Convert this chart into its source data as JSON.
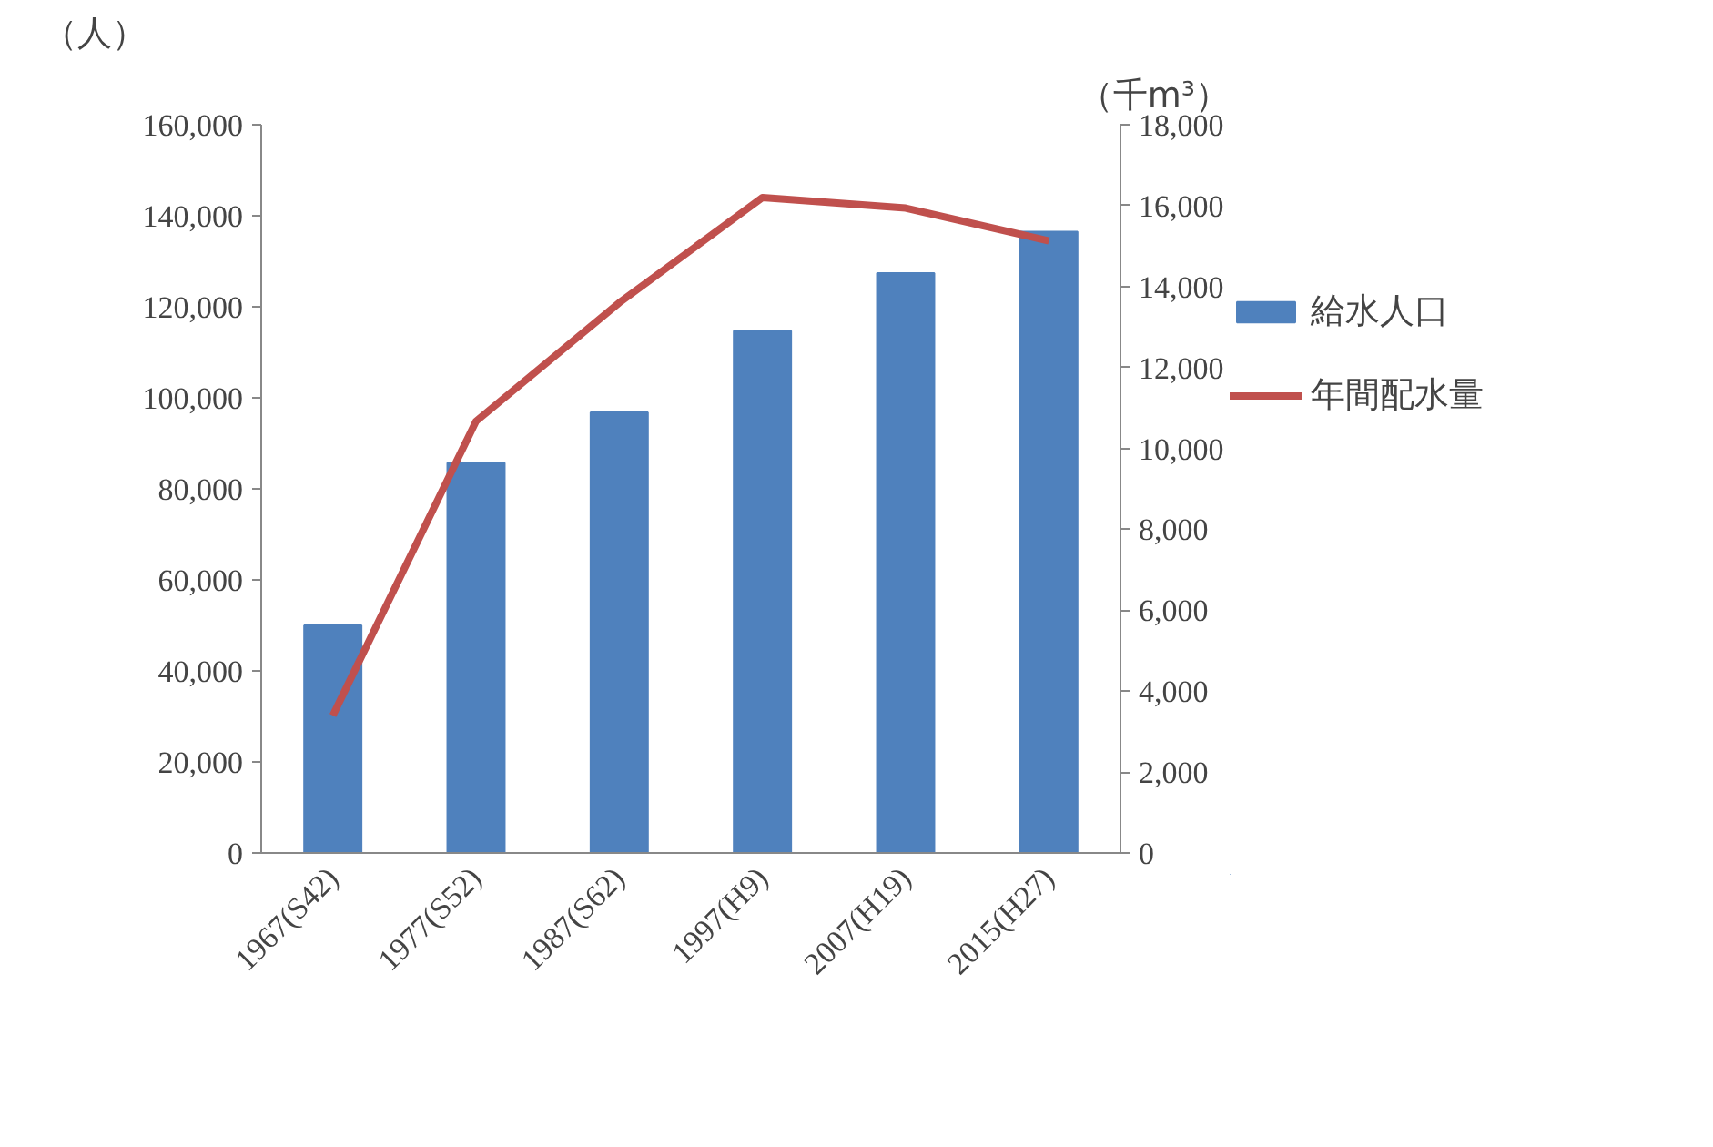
{
  "chart_data": {
    "type": "bar",
    "ylabel": "（人）",
    "y2label": "（千m³）",
    "categories": [
      "1967(S42)",
      "1977(S52)",
      "1987(S62)",
      "1997(H9)",
      "2007(H19)",
      "2015(H27)"
    ],
    "series": [
      {
        "name": "給水人口",
        "color": "#4f81bd",
        "values": [
          50000,
          85700,
          96800,
          114700,
          127400,
          136500
        ]
      },
      {
        "name": "年間配水量",
        "type": "line",
        "axis": "y2",
        "color": "#c0504d",
        "values": [
          3400,
          10670,
          13600,
          16200,
          15940,
          15130
        ]
      }
    ],
    "ylim": [
      0,
      160000
    ],
    "yticks": [
      {
        "value": 0,
        "label": "0"
      },
      {
        "value": 20000,
        "label": "20,000"
      },
      {
        "value": 40000,
        "label": "40,000"
      },
      {
        "value": 60000,
        "label": "60,000"
      },
      {
        "value": 80000,
        "label": "80,000"
      },
      {
        "value": 100000,
        "label": "100,000"
      },
      {
        "value": 120000,
        "label": "120,000"
      },
      {
        "value": 140000,
        "label": "140,000"
      },
      {
        "value": 160000,
        "label": "160,000"
      }
    ],
    "y2lim": [
      0,
      18000
    ],
    "y2ticks": [
      {
        "value": 0,
        "label": "0"
      },
      {
        "value": 2000,
        "label": "2,000"
      },
      {
        "value": 4000,
        "label": "4,000"
      },
      {
        "value": 6000,
        "label": "6,000"
      },
      {
        "value": 8000,
        "label": "8,000"
      },
      {
        "value": 10000,
        "label": "10,000"
      },
      {
        "value": 12000,
        "label": "12,000"
      },
      {
        "value": 14000,
        "label": "14,000"
      },
      {
        "value": 16000,
        "label": "16,000"
      },
      {
        "value": 18000,
        "label": "18,000"
      }
    ],
    "grid": false,
    "legend": "right"
  }
}
